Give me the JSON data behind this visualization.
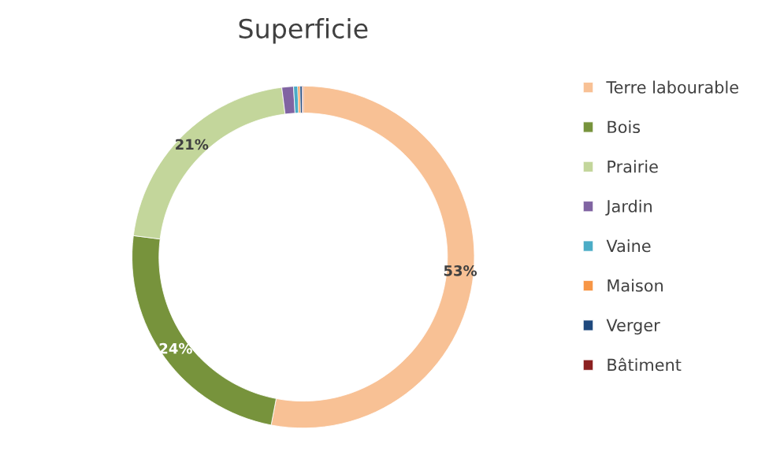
{
  "chart_data": {
    "type": "donut",
    "title": "Superficie",
    "categories": [
      "Terre labourable",
      "Bois",
      "Prairie",
      "Jardin",
      "Vaine",
      "Maison",
      "Verger",
      "Bâtiment"
    ],
    "values": [
      53,
      24,
      21,
      1.1,
      0.4,
      0.2,
      0.2,
      0.1
    ],
    "colors": [
      "#f8c195",
      "#77933c",
      "#c3d69b",
      "#8064a2",
      "#4bacc6",
      "#f79646",
      "#1f497d",
      "#8b2020"
    ],
    "value_labels": [
      "53%",
      "24%",
      "21%",
      null,
      null,
      null,
      null,
      null
    ],
    "legend": "right"
  }
}
